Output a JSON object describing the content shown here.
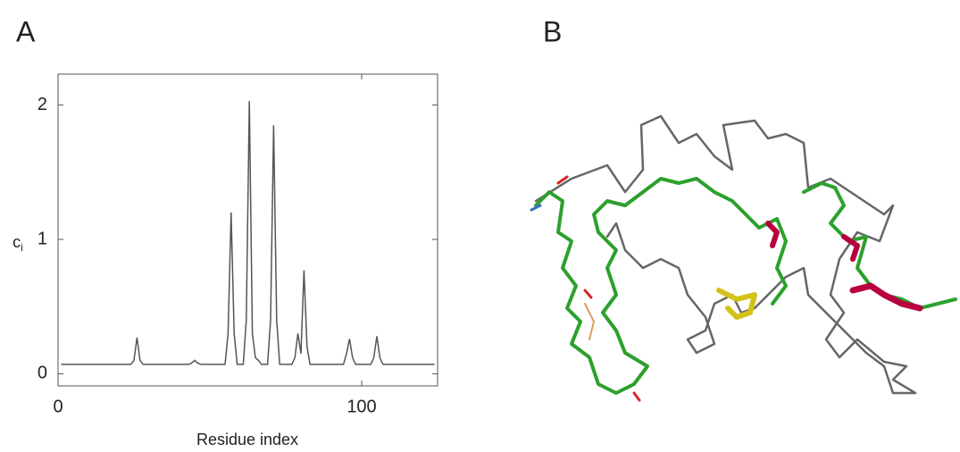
{
  "panels": [
    "A",
    "B"
  ],
  "chart_data": {
    "type": "line",
    "xlabel": "Residue index",
    "ylabel": "c",
    "ylabel_sub": "i",
    "color": "#555555",
    "xlim": [
      0,
      125
    ],
    "xticks": [
      0,
      100
    ],
    "ylim": [
      -0.09,
      2.23
    ],
    "yticks": [
      0,
      1,
      2
    ],
    "x": [
      1,
      2,
      3,
      4,
      5,
      6,
      7,
      8,
      9,
      10,
      11,
      12,
      13,
      14,
      15,
      16,
      17,
      18,
      19,
      20,
      21,
      22,
      23,
      24,
      25,
      26,
      27,
      28,
      29,
      30,
      31,
      32,
      33,
      34,
      35,
      36,
      37,
      38,
      39,
      40,
      41,
      42,
      43,
      44,
      45,
      46,
      47,
      48,
      49,
      50,
      51,
      52,
      53,
      54,
      55,
      56,
      57,
      58,
      59,
      60,
      61,
      62,
      63,
      64,
      65,
      66,
      67,
      68,
      69,
      70,
      71,
      72,
      73,
      74,
      75,
      76,
      77,
      78,
      79,
      80,
      81,
      82,
      83,
      84,
      85,
      86,
      87,
      88,
      89,
      90,
      91,
      92,
      93,
      94,
      95,
      96,
      97,
      98,
      99,
      100,
      101,
      102,
      103,
      104,
      105,
      106,
      107,
      108,
      109,
      110,
      111,
      112,
      113,
      114,
      115,
      116,
      117,
      118,
      119,
      120,
      121,
      122,
      123,
      124
    ],
    "values": [
      0.07,
      0.07,
      0.07,
      0.07,
      0.07,
      0.07,
      0.07,
      0.07,
      0.07,
      0.07,
      0.07,
      0.07,
      0.07,
      0.07,
      0.07,
      0.07,
      0.07,
      0.07,
      0.07,
      0.07,
      0.07,
      0.07,
      0.07,
      0.07,
      0.1,
      0.27,
      0.1,
      0.07,
      0.07,
      0.07,
      0.07,
      0.07,
      0.07,
      0.07,
      0.07,
      0.07,
      0.07,
      0.07,
      0.07,
      0.07,
      0.07,
      0.07,
      0.07,
      0.08,
      0.1,
      0.08,
      0.07,
      0.07,
      0.07,
      0.07,
      0.07,
      0.07,
      0.07,
      0.07,
      0.07,
      0.3,
      1.2,
      0.3,
      0.07,
      0.07,
      0.07,
      0.4,
      2.03,
      0.3,
      0.12,
      0.1,
      0.07,
      0.07,
      0.07,
      0.4,
      1.85,
      0.4,
      0.07,
      0.07,
      0.07,
      0.07,
      0.07,
      0.12,
      0.3,
      0.15,
      0.77,
      0.2,
      0.07,
      0.07,
      0.07,
      0.07,
      0.07,
      0.07,
      0.07,
      0.07,
      0.07,
      0.07,
      0.07,
      0.07,
      0.15,
      0.26,
      0.12,
      0.07,
      0.07,
      0.07,
      0.07,
      0.07,
      0.07,
      0.12,
      0.28,
      0.12,
      0.07,
      0.07,
      0.07,
      0.07,
      0.07,
      0.07,
      0.07,
      0.07,
      0.07,
      0.07,
      0.07,
      0.07,
      0.07,
      0.07,
      0.07,
      0.07,
      0.07,
      0.07
    ]
  }
}
